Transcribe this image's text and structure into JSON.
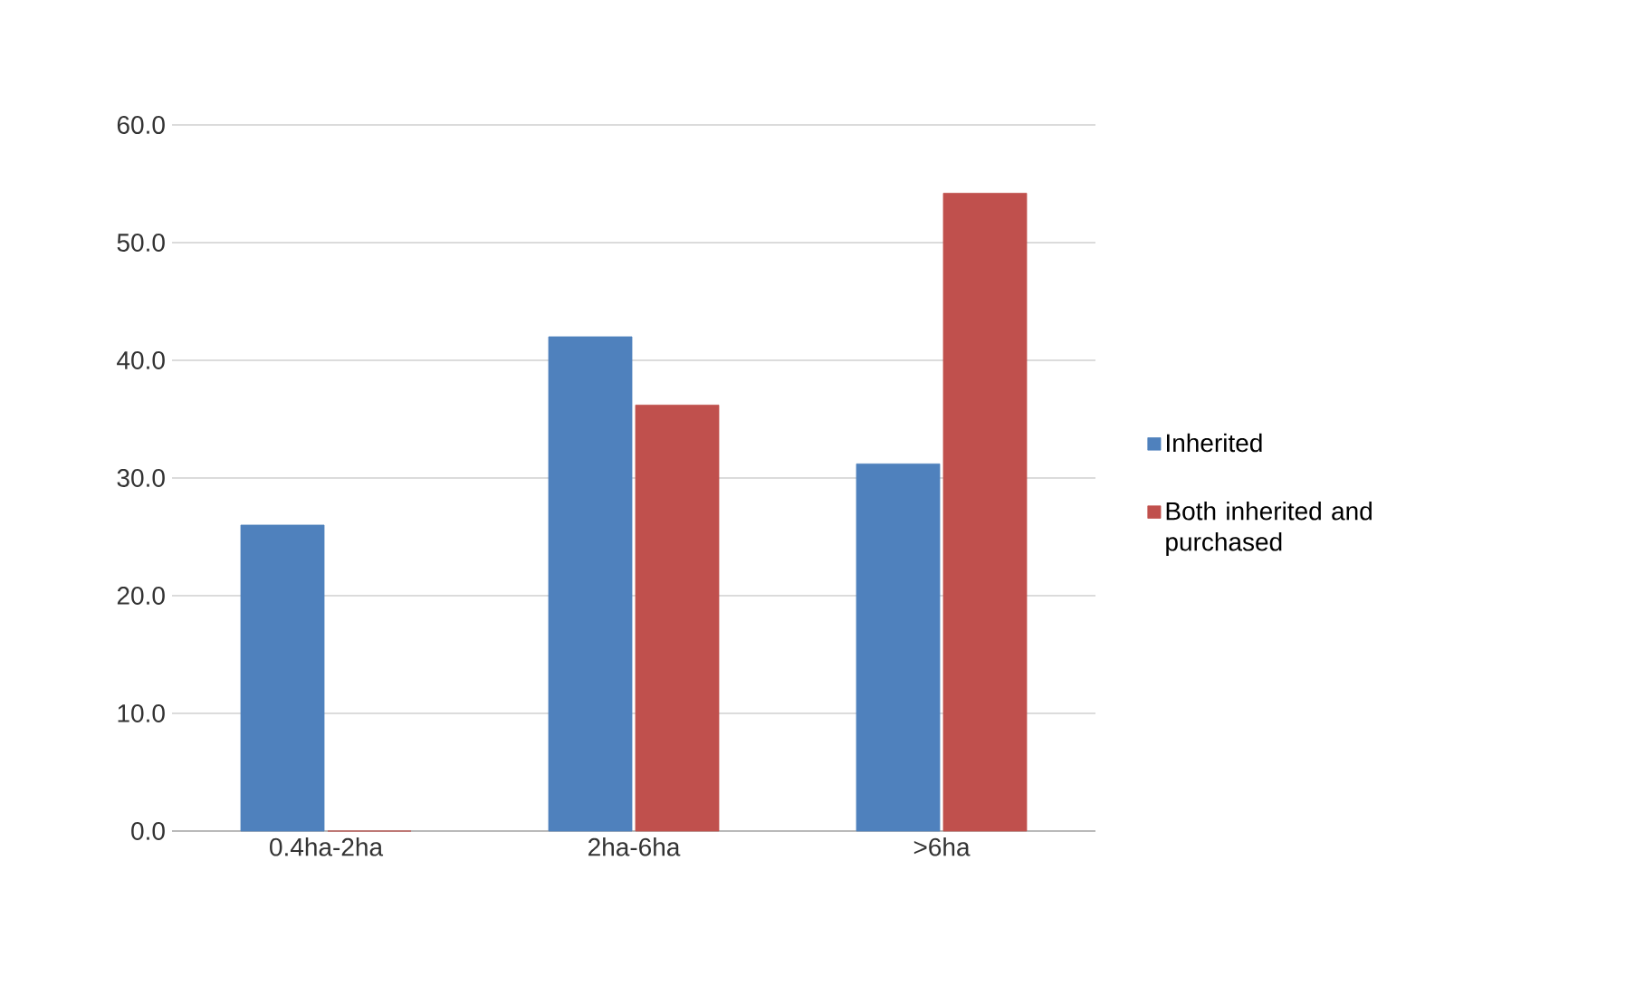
{
  "chart_data": {
    "type": "bar",
    "categories": [
      "0.4ha-2ha",
      "2ha-6ha",
      ">6ha"
    ],
    "series": [
      {
        "name": "Inherited",
        "color": "#4f81bd",
        "values": [
          26.0,
          42.0,
          31.2
        ]
      },
      {
        "name": "Both inherited and purchased",
        "color": "#c0504d",
        "values": [
          0.0,
          36.2,
          54.2
        ]
      }
    ],
    "ylim": [
      0,
      60
    ],
    "yticks": [
      {
        "value": 0,
        "label": "0.0"
      },
      {
        "value": 10,
        "label": "10.0"
      },
      {
        "value": 20,
        "label": "20.0"
      },
      {
        "value": 30,
        "label": "30.0"
      },
      {
        "value": 40,
        "label": "40.0"
      },
      {
        "value": 50,
        "label": "50.0"
      },
      {
        "value": 60,
        "label": "60.0"
      }
    ],
    "grid": "y",
    "legend": "right"
  }
}
